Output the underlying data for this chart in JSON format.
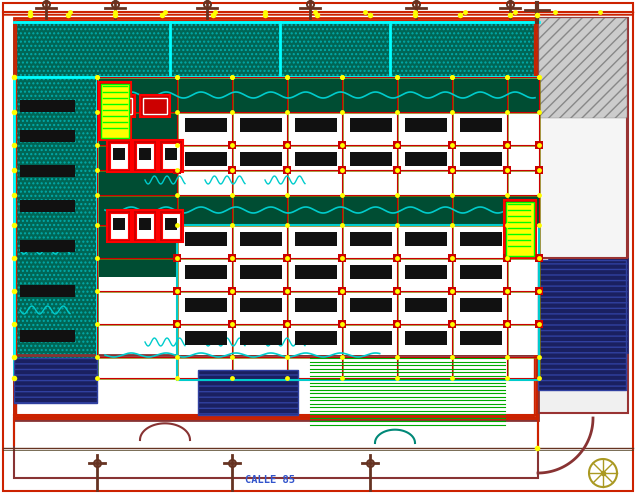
{
  "bg_color": "#ffffff",
  "figsize": [
    6.36,
    4.94
  ],
  "dpi": 100,
  "title_text": "CALLE 85"
}
